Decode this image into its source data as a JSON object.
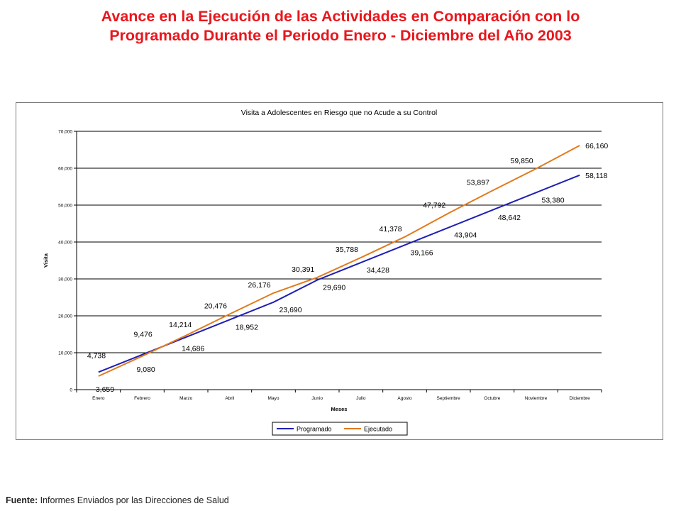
{
  "page": {
    "title_line1": "Avance en la Ejecución de las Actividades en Comparación con lo",
    "title_line2": "Programado Durante el Periodo Enero - Diciembre del Año 2003",
    "source_label": "Fuente:",
    "source_text": "Informes Enviados por las Direcciones de Salud"
  },
  "colors": {
    "title": "#e8171d",
    "programado": "#1f1fb4",
    "ejecutado": "#e07b1c"
  },
  "chart_data": {
    "type": "line",
    "title": "Visita a Adolescentes en Riesgo que no Acude a su Control",
    "xlabel": "Meses",
    "ylabel": "Visita",
    "categories": [
      "Enero",
      "Febrero",
      "Marzo",
      "Abril",
      "Mayo",
      "Junio",
      "Julio",
      "Agosto",
      "Septiembre",
      "Octubre",
      "Noviembre",
      "Diciembre"
    ],
    "ylim": [
      0,
      70000
    ],
    "yticks": [
      0,
      10000,
      20000,
      30000,
      40000,
      50000,
      60000,
      70000
    ],
    "ytick_labels": [
      "0",
      "10,000",
      "20,000",
      "30,000",
      "40,000",
      "50,000",
      "60,000",
      "70,000"
    ],
    "grid": true,
    "legend_position": "bottom",
    "series": [
      {
        "name": "Programado",
        "values": [
          4738,
          9476,
          14214,
          18952,
          23690,
          29690,
          34428,
          39166,
          43904,
          48642,
          53380,
          58118
        ],
        "labels": [
          "4,738",
          "9,476",
          "14,214",
          "18,952",
          "23,690",
          "29,690",
          "34,428",
          "39,166",
          "43,904",
          "48,642",
          "53,380",
          "58,118"
        ]
      },
      {
        "name": "Ejecutado",
        "values": [
          3659,
          9080,
          14686,
          20476,
          26176,
          30391,
          35788,
          41378,
          47792,
          53897,
          59850,
          66160
        ],
        "labels": [
          "3,659",
          "9,080",
          "14,686",
          "20,476",
          "26,176",
          "30,391",
          "35,788",
          "41,378",
          "47,792",
          "53,897",
          "59,850",
          "66,160"
        ]
      }
    ]
  }
}
